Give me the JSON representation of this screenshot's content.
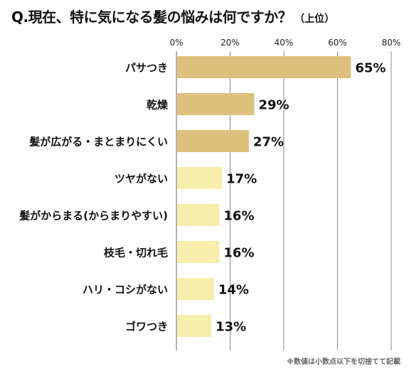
{
  "title": "Q.現在、特に気になる髪の悩みは何ですか？",
  "subtitle": "（上位）",
  "footnote": "※数値は小数点以下を切捨てて記載",
  "colors": {
    "dark_bar": "#dcc07c",
    "light_bar": "#f6eeaa",
    "grid": "#888888"
  },
  "chart_data": {
    "type": "bar",
    "orientation": "horizontal",
    "title": "Q.現在、特に気になる髪の悩みは何ですか？（上位）",
    "xlim": [
      0,
      80
    ],
    "xticks": [
      "0%",
      "20%",
      "40%",
      "60%",
      "80%"
    ],
    "grid": true,
    "categories": [
      "パサつき",
      "乾燥",
      "髪が広がる・まとまりにくい",
      "ツヤがない",
      "髪がからまる(からまりやすい)",
      "枝毛・切れ毛",
      "ハリ・コシがない",
      "ゴワつき"
    ],
    "values": [
      65,
      29,
      27,
      17,
      16,
      16,
      14,
      13
    ],
    "value_labels": [
      "65%",
      "29%",
      "27%",
      "17%",
      "16%",
      "16%",
      "14%",
      "13%"
    ],
    "bar_shade": [
      "dark",
      "dark",
      "dark",
      "light",
      "light",
      "light",
      "light",
      "light"
    ]
  }
}
